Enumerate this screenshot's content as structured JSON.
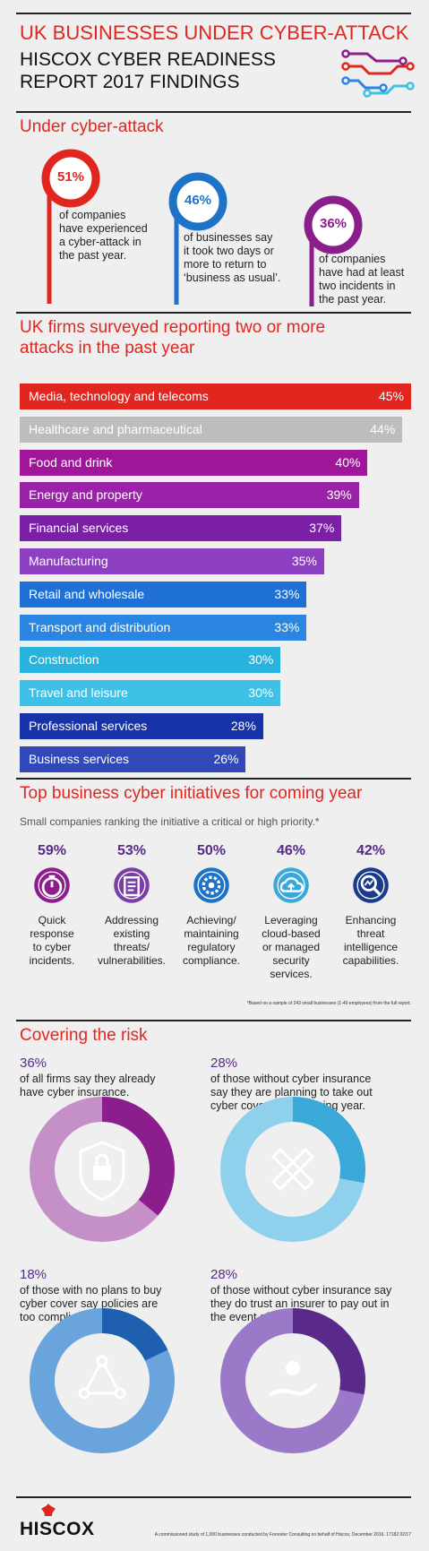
{
  "header": {
    "title_line1": "UK BUSINESSES UNDER CYBER-ATTACK",
    "title_line2": "HISCOX CYBER READINESS",
    "title_line3": "REPORT 2017 FINDINGS",
    "icon": "circuit-icon",
    "colors": {
      "red": "#e0261f",
      "blue": "#1e73c8",
      "purple": "#8c1d8c"
    }
  },
  "under_attack": {
    "title": "Under cyber-attack",
    "stats": [
      {
        "pct": "51%",
        "text": [
          "of companies",
          "have experienced",
          "a cyber-attack in",
          "the past year."
        ],
        "color": "#e0261f"
      },
      {
        "pct": "46%",
        "text": [
          "of businesses say",
          "it took two days or",
          "more to return to",
          "‘business as usual’."
        ],
        "color": "#1e73c8"
      },
      {
        "pct": "36%",
        "text": [
          "of companies",
          "have had at least",
          "two incidents in",
          "the past year."
        ],
        "color": "#8c1d8c"
      }
    ]
  },
  "chart_title_line1": "UK firms surveyed reporting two or more",
  "chart_title_line2": "attacks in the past year",
  "chart_data": {
    "type": "bar",
    "title": "UK firms surveyed reporting two or more attacks in the past year",
    "categories": [
      "Media, technology and telecoms",
      "Healthcare and pharmaceutical",
      "Food and drink",
      "Energy and property",
      "Financial services",
      "Manufacturing",
      "Retail and wholesale",
      "Transport and distribution",
      "Construction",
      "Travel and leisure",
      "Professional services",
      "Business services"
    ],
    "values": [
      45,
      44,
      40,
      39,
      37,
      35,
      33,
      33,
      30,
      30,
      28,
      26
    ],
    "labels": [
      "45%",
      "44%",
      "40%",
      "39%",
      "37%",
      "35%",
      "33%",
      "33%",
      "30%",
      "30%",
      "28%",
      "26%"
    ],
    "colors": [
      "#e0261f",
      "#bdbdbd",
      "#a0169b",
      "#9a22a8",
      "#7a1fa6",
      "#8d3fc2",
      "#1e6fd6",
      "#2a86e0",
      "#28b3df",
      "#3fc0e6",
      "#1733a8",
      "#3048b8"
    ]
  },
  "initiatives": {
    "title": "Top business cyber initiatives for coming year",
    "subtitle": "Small companies ranking the initiative a critical or high priority.*",
    "items": [
      {
        "pct": "59%",
        "lines": [
          "Quick",
          "response",
          "to cyber",
          "incidents."
        ],
        "icon": "stopwatch-icon",
        "color": "#8c1d8c"
      },
      {
        "pct": "53%",
        "lines": [
          "Addressing",
          "existing",
          "threats/",
          "vulnerabilities."
        ],
        "icon": "clipboard-icon",
        "color": "#7a3fa6"
      },
      {
        "pct": "50%",
        "lines": [
          "Achieving/",
          "maintaining",
          "regulatory",
          "compliance."
        ],
        "icon": "gear-icon",
        "color": "#1e73c8"
      },
      {
        "pct": "46%",
        "lines": [
          "Leveraging",
          "cloud-based",
          "or managed",
          "security services."
        ],
        "icon": "cloud-upload-icon",
        "color": "#3aa8d8"
      },
      {
        "pct": "42%",
        "lines": [
          "Enhancing",
          "threat",
          "intelligence",
          "capabilities."
        ],
        "icon": "magnifier-chart-icon",
        "color": "#1a3a8c"
      }
    ],
    "footnote": "*Based on a sample of 243 small businesses (1-49  employees) from the full report."
  },
  "covering": {
    "title": "Covering the risk",
    "items": [
      {
        "pct": "36%",
        "lines": [
          "of all firms say they already",
          "have cyber insurance."
        ],
        "value": 36,
        "color": "#8c1d8c",
        "track": "#c58fc8",
        "icon": "padlock-shield-icon"
      },
      {
        "pct": "28%",
        "lines": [
          "of those without cyber insurance",
          "say they are planning to take out",
          "cyber cover in the coming year."
        ],
        "value": 28,
        "color": "#3aa8d8",
        "track": "#8fd0ec",
        "icon": "ruler-pencil-icon"
      },
      {
        "pct": "18%",
        "lines": [
          "of those with no plans to buy",
          "cyber cover say policies are",
          "too complicated."
        ],
        "value": 18,
        "color": "#1e5fb0",
        "track": "#6aa4dc",
        "icon": "network-icon"
      },
      {
        "pct": "28%",
        "lines": [
          "of those without cyber insurance say",
          "they do trust an insurer to pay out in",
          "the event of a claim."
        ],
        "value": 28,
        "color": "#5a2a8a",
        "track": "#9a7ac8",
        "icon": "hand-coin-icon"
      }
    ]
  },
  "footer": {
    "logo": "HISCOX",
    "note": "A commissioned study of 1,000 businesses conducted by Forrester Consulting on behalf of Hiscox, December 2016. 17182 02/17"
  }
}
